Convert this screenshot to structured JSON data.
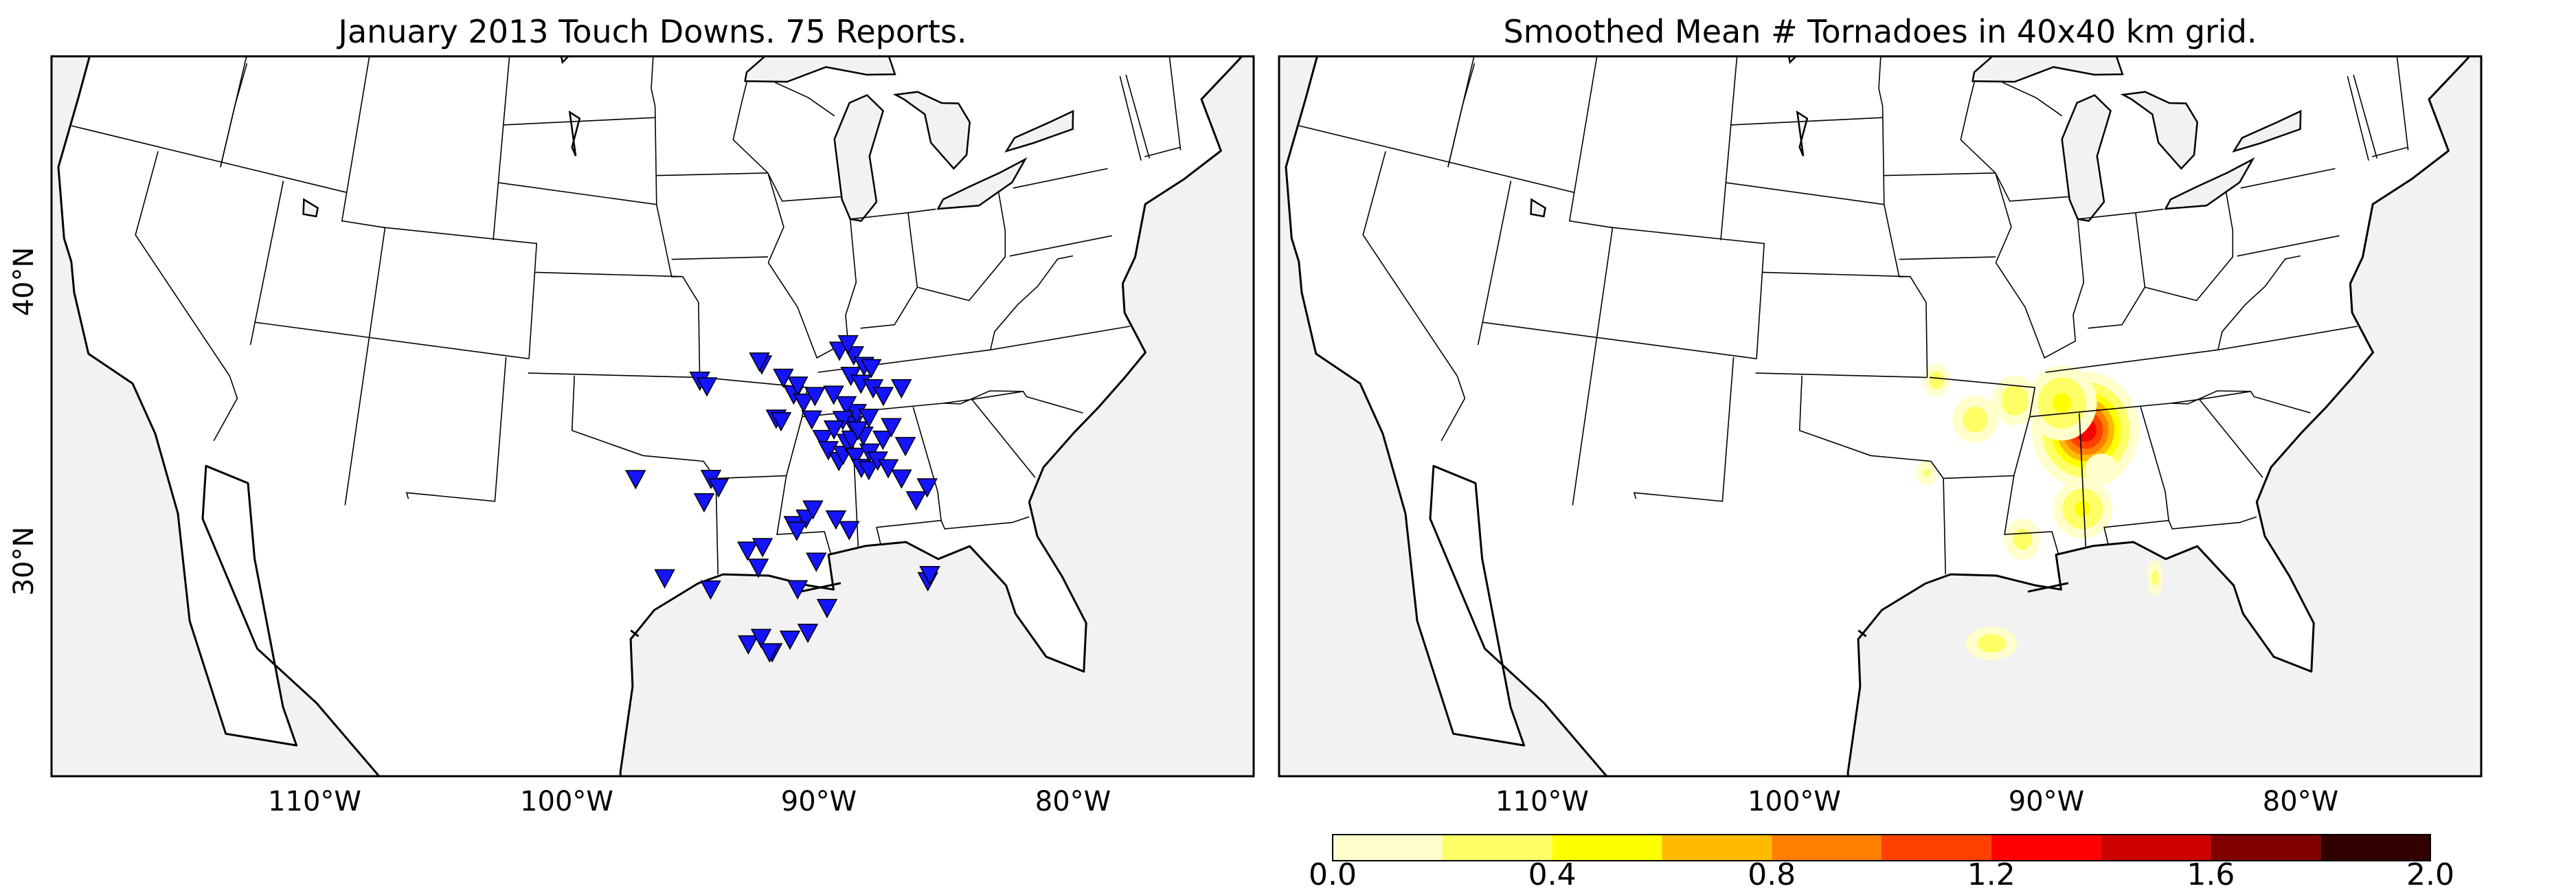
{
  "left_panel": {
    "title": "January 2013 Touch Downs. 75 Reports.",
    "marker_color": "#1414ff",
    "reports": [
      [
        -97.3,
        33.0
      ],
      [
        -94.6,
        36.4
      ],
      [
        -94.3,
        36.2
      ],
      [
        -94.2,
        33.0
      ],
      [
        -93.9,
        32.7
      ],
      [
        -94.5,
        32.2
      ],
      [
        -96.1,
        29.6
      ],
      [
        -94.3,
        29.2
      ],
      [
        -92.9,
        27.3
      ],
      [
        -92.4,
        27.5
      ],
      [
        -92.0,
        27.0
      ],
      [
        -91.3,
        27.4
      ],
      [
        -92.1,
        27.0
      ],
      [
        -90.6,
        27.6
      ],
      [
        -89.8,
        28.4
      ],
      [
        -92.8,
        30.5
      ],
      [
        -92.2,
        30.6
      ],
      [
        -92.4,
        29.9
      ],
      [
        -90.9,
        31.3
      ],
      [
        -90.4,
        31.5
      ],
      [
        -90.1,
        31.8
      ],
      [
        -90.8,
        31.1
      ],
      [
        -91.9,
        36.9
      ],
      [
        -92.0,
        37.0
      ],
      [
        -91.4,
        35.0
      ],
      [
        -91.2,
        34.9
      ],
      [
        -90.6,
        35.8
      ],
      [
        -90.2,
        35.5
      ],
      [
        -89.9,
        34.9
      ],
      [
        -89.5,
        34.2
      ],
      [
        -89.3,
        33.8
      ],
      [
        -88.9,
        33.4
      ],
      [
        -88.7,
        33.6
      ],
      [
        -88.5,
        34.0
      ],
      [
        -88.2,
        33.5
      ],
      [
        -88.0,
        33.1
      ],
      [
        -87.7,
        33.0
      ],
      [
        -87.6,
        33.6
      ],
      [
        -88.2,
        34.6
      ],
      [
        -88.0,
        35.0
      ],
      [
        -88.4,
        35.3
      ],
      [
        -88.9,
        35.7
      ],
      [
        -88.1,
        36.3
      ],
      [
        -87.9,
        37.0
      ],
      [
        -87.5,
        36.6
      ],
      [
        -87.2,
        36.5
      ],
      [
        -87.0,
        34.0
      ],
      [
        -87.3,
        33.3
      ],
      [
        -86.6,
        34.4
      ],
      [
        -86.1,
        33.7
      ],
      [
        -86.0,
        35.7
      ],
      [
        -85.4,
        32.2
      ],
      [
        -85.9,
        31.8
      ],
      [
        -85.8,
        29.0
      ],
      [
        -85.7,
        29.2
      ],
      [
        -88.5,
        37.2
      ],
      [
        -88.1,
        37.4
      ],
      [
        -87.7,
        36.0
      ],
      [
        -87.2,
        35.8
      ],
      [
        -86.8,
        35.5
      ],
      [
        -88.3,
        34.1
      ],
      [
        -87.8,
        34.2
      ],
      [
        -88.6,
        34.8
      ],
      [
        -89.0,
        34.5
      ],
      [
        -89.7,
        35.7
      ],
      [
        -90.4,
        36.1
      ],
      [
        -91.0,
        36.4
      ],
      [
        -86.9,
        33.0
      ],
      [
        -87.5,
        34.8
      ],
      [
        -88.0,
        34.4
      ],
      [
        -86.4,
        32.6
      ],
      [
        -89.2,
        31.4
      ],
      [
        -88.7,
        31.0
      ],
      [
        -90.1,
        30.0
      ],
      [
        -90.9,
        29.1
      ]
    ]
  },
  "right_panel": {
    "title": "Smoothed Mean # Tornadoes in 40x40 km grid.",
    "hotspots": [
      {
        "lon": -88.0,
        "lat": 34.4,
        "peak": 1.35,
        "sx": 0.95,
        "sy": 0.85
      },
      {
        "lon": -88.9,
        "lat": 35.4,
        "peak": 0.45,
        "sx": 0.8,
        "sy": 0.7
      },
      {
        "lon": -90.9,
        "lat": 35.6,
        "peak": 0.35,
        "sx": 0.55,
        "sy": 0.5
      },
      {
        "lon": -92.6,
        "lat": 35.0,
        "peak": 0.3,
        "sx": 0.6,
        "sy": 0.5
      },
      {
        "lon": -94.2,
        "lat": 36.4,
        "peak": 0.3,
        "sx": 0.35,
        "sy": 0.35
      },
      {
        "lon": -94.7,
        "lat": 33.2,
        "peak": 0.22,
        "sx": 0.3,
        "sy": 0.3
      },
      {
        "lon": -88.4,
        "lat": 31.7,
        "peak": 0.45,
        "sx": 0.65,
        "sy": 0.55
      },
      {
        "lon": -90.9,
        "lat": 30.8,
        "peak": 0.28,
        "sx": 0.45,
        "sy": 0.45
      },
      {
        "lon": -92.3,
        "lat": 27.3,
        "peak": 0.3,
        "sx": 0.6,
        "sy": 0.35
      },
      {
        "lon": -85.8,
        "lat": 29.1,
        "peak": 0.25,
        "sx": 0.2,
        "sy": 0.4
      },
      {
        "lon": -87.5,
        "lat": 33.0,
        "peak": 0.2,
        "sx": 0.5,
        "sy": 0.4
      }
    ]
  },
  "axes": {
    "lon_ticks": [
      "110°W",
      "100°W",
      "90°W",
      "80°W"
    ],
    "lat_ticks": [
      "40°N",
      "30°N"
    ]
  },
  "colorbar": {
    "ticks": [
      "0.0",
      "0.4",
      "0.8",
      "1.2",
      "1.6",
      "2.0"
    ],
    "levels": [
      0.0,
      0.2,
      0.4,
      0.6,
      0.8,
      1.0,
      1.2,
      1.4,
      1.6,
      1.8,
      2.0
    ],
    "colors": [
      "#ffffcc",
      "#ffff66",
      "#ffff00",
      "#ffbb00",
      "#ff8000",
      "#ff4000",
      "#ff0000",
      "#cc0000",
      "#800000",
      "#330000"
    ]
  },
  "map_colors": {
    "land": "#ffffff",
    "water": "#f2f2f2",
    "lines": "#000000"
  }
}
